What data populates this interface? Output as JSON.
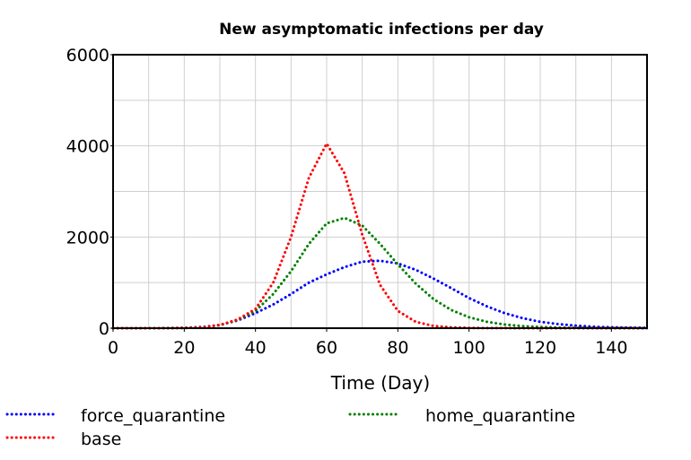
{
  "chart_data": {
    "type": "line",
    "title": "New asymptomatic infections per day",
    "xlabel": "Time (Day)",
    "ylabel": "",
    "xlim": [
      0,
      150
    ],
    "ylim": [
      0,
      6000
    ],
    "xticks": [
      "0",
      "20",
      "40",
      "60",
      "80",
      "100",
      "120",
      "140"
    ],
    "yticks": [
      "0",
      "2000",
      "4000",
      "6000"
    ],
    "grid": true,
    "legend_position": "bottom",
    "line_style": "dotted",
    "x": [
      0,
      5,
      10,
      15,
      20,
      25,
      30,
      35,
      40,
      45,
      50,
      55,
      60,
      65,
      70,
      75,
      80,
      85,
      90,
      95,
      100,
      105,
      110,
      115,
      120,
      125,
      130,
      135,
      140,
      145,
      150
    ],
    "series": [
      {
        "name": "force_quarantine",
        "color": "#0000ff",
        "values": [
          0,
          0,
          0,
          2,
          8,
          25,
          70,
          170,
          330,
          520,
          750,
          1000,
          1180,
          1340,
          1460,
          1480,
          1420,
          1280,
          1090,
          880,
          660,
          480,
          330,
          220,
          140,
          90,
          55,
          32,
          20,
          12,
          8
        ]
      },
      {
        "name": "home_quarantine",
        "color": "#008000",
        "values": [
          0,
          0,
          0,
          1,
          5,
          20,
          65,
          180,
          380,
          750,
          1250,
          1850,
          2300,
          2420,
          2250,
          1850,
          1400,
          980,
          640,
          400,
          240,
          140,
          80,
          45,
          25,
          14,
          8,
          4,
          2,
          1,
          0
        ]
      },
      {
        "name": "base",
        "color": "#ff0000",
        "values": [
          0,
          0,
          0,
          1,
          4,
          18,
          70,
          190,
          420,
          1000,
          2000,
          3300,
          4050,
          3400,
          2050,
          950,
          380,
          140,
          50,
          18,
          6,
          2,
          1,
          0,
          0,
          0,
          0,
          0,
          0,
          0,
          0
        ]
      }
    ]
  }
}
